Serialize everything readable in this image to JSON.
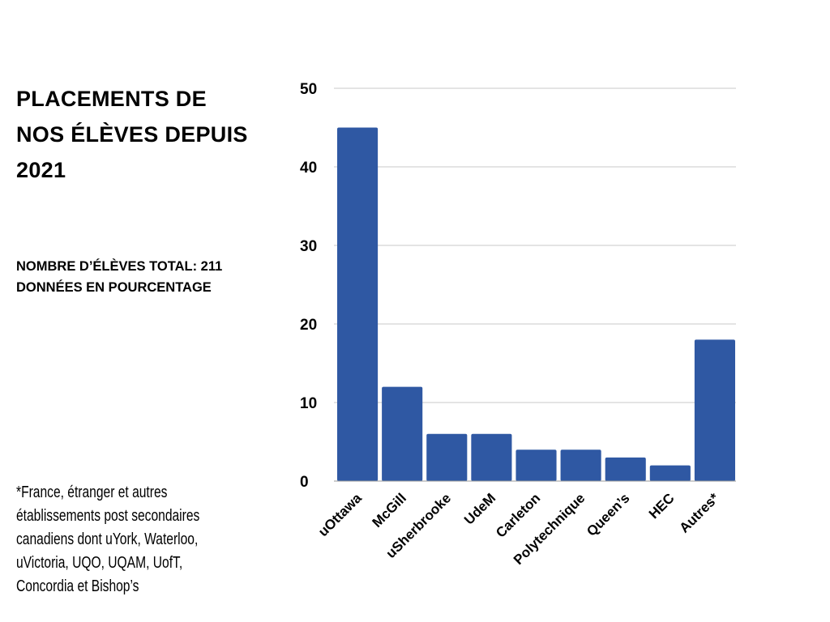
{
  "title_lines": [
    "PLACEMENTS DE",
    "NOS ÉLÈVES DEPUIS",
    "2021"
  ],
  "subtitle_lines": [
    "NOMBRE D’ÉLÈVES TOTAL: 211",
    "DONNÉES EN POURCENTAGE"
  ],
  "footnote_lines": [
    "*France, étranger et autres",
    "établissements post secondaires",
    "canadiens dont uYork, Waterloo,",
    "uVictoria, UQO, UQAM, UofT,",
    "Concordia et Bishop’s"
  ],
  "chart_data": {
    "type": "bar",
    "title": "PLACEMENTS DE NOS ÉLÈVES DEPUIS 2021",
    "xlabel": "",
    "ylabel": "",
    "categories": [
      "uOttawa",
      "McGill",
      "uSherbrooke",
      "UdeM",
      "Carleton",
      "Polytechnique",
      "Queen’s",
      "HEC",
      "Autres*"
    ],
    "values": [
      45,
      12,
      6,
      6,
      4,
      4,
      3,
      2,
      18
    ],
    "ylim": [
      0,
      50
    ],
    "yticks": [
      0,
      10,
      20,
      30,
      40,
      50
    ],
    "grid": true,
    "bar_color": "#2f58a3"
  }
}
